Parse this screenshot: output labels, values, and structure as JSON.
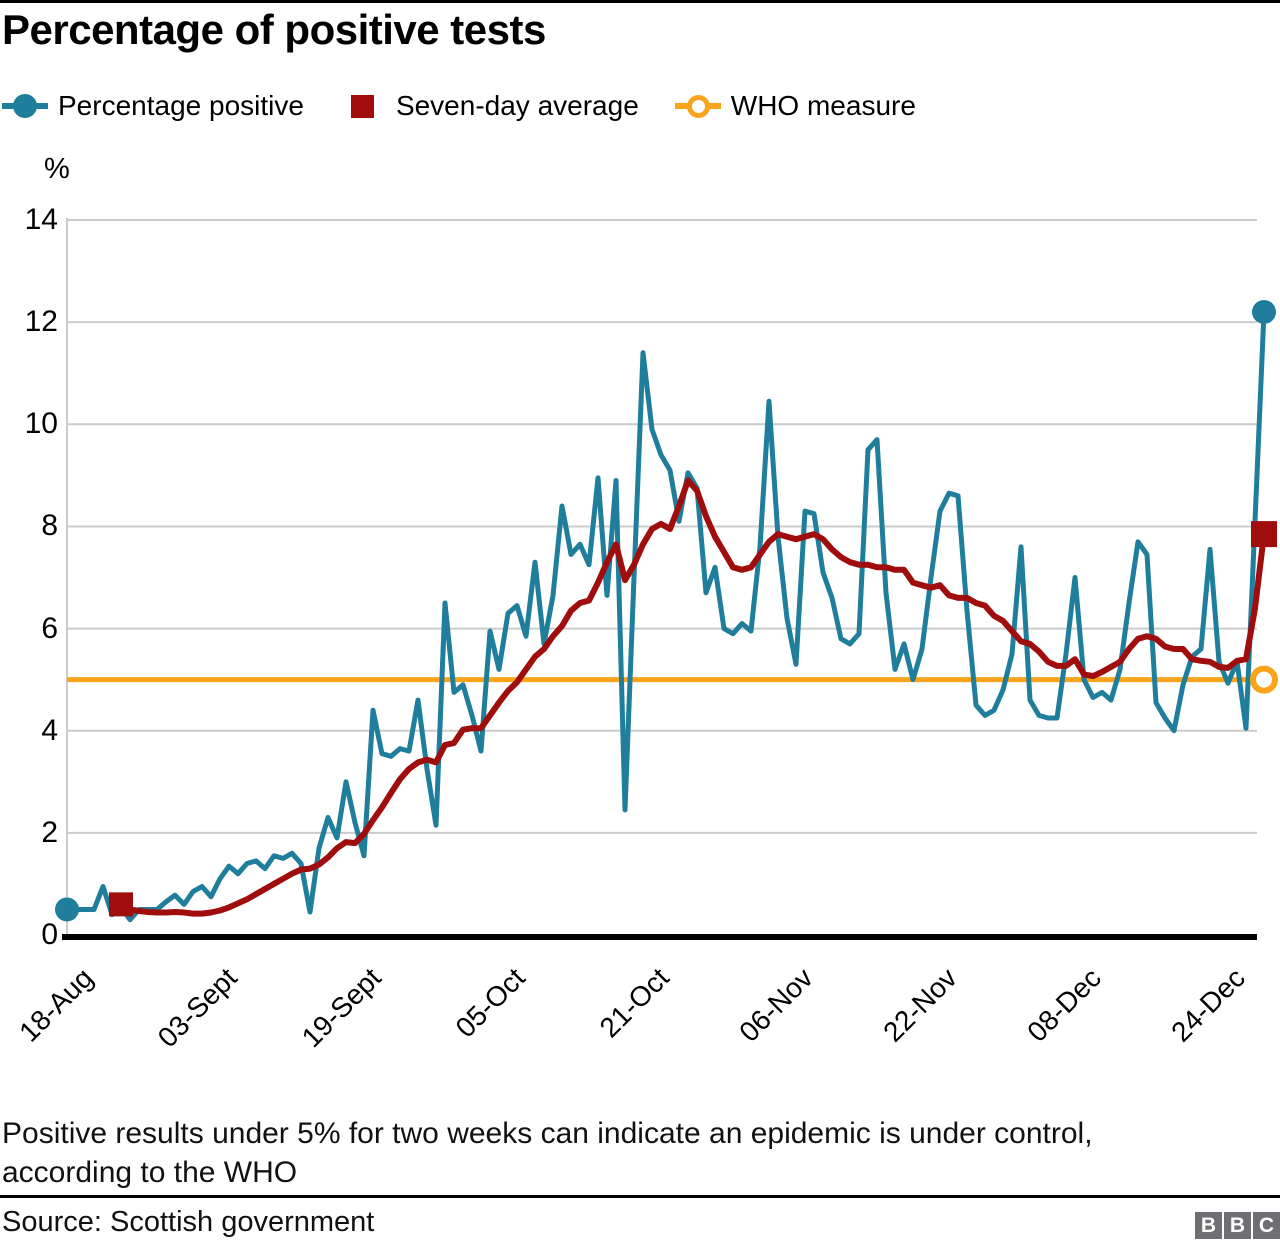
{
  "title": "Percentage of positive tests",
  "legend": {
    "items": [
      {
        "label": "Percentage positive",
        "marker": "filled-circle",
        "color": "#1f7e9c"
      },
      {
        "label": "Seven-day average",
        "marker": "filled-square",
        "color": "#a00d0d"
      },
      {
        "label": "WHO measure",
        "marker": "open-circle",
        "color": "#f9a41b"
      }
    ]
  },
  "footnote": "Positive results under 5% for two weeks can indicate an epidemic is under control, according to the WHO",
  "source": "Source: Scottish government",
  "logo_letters": [
    "B",
    "B",
    "C"
  ],
  "colors": {
    "percentage_positive": "#1f7e9c",
    "seven_day_average": "#a00d0d",
    "who_measure": "#f9a41b",
    "gridline": "#cccccc",
    "axis": "#000000"
  },
  "chart_data": {
    "type": "line",
    "title": "Percentage of positive tests",
    "ylabel": "%",
    "ylim": [
      0,
      14
    ],
    "yticks": [
      0,
      2,
      4,
      6,
      8,
      10,
      12,
      14
    ],
    "grid": "horizontal",
    "legend_position": "top",
    "x_unit": "days since 18-Aug",
    "xtick_day_offsets": [
      0,
      16,
      32,
      48,
      64,
      80,
      96,
      112,
      128
    ],
    "xtick_labels": [
      "18-Aug",
      "03-Sept",
      "19-Sept",
      "05-Oct",
      "21-Oct",
      "06-Nov",
      "22-Nov",
      "08-Dec",
      "24-Dec"
    ],
    "series": [
      {
        "name": "Percentage positive",
        "color": "#1f7e9c",
        "line_width": 5,
        "start_marker": "filled-circle",
        "end_marker": "filled-circle",
        "values": [
          0.5,
          0.5,
          0.5,
          0.5,
          0.95,
          0.4,
          0.55,
          0.3,
          0.5,
          0.5,
          0.5,
          0.65,
          0.78,
          0.6,
          0.85,
          0.95,
          0.75,
          1.1,
          1.35,
          1.2,
          1.4,
          1.45,
          1.3,
          1.55,
          1.5,
          1.6,
          1.4,
          0.45,
          1.7,
          2.3,
          1.9,
          3.0,
          2.2,
          1.55,
          4.4,
          3.55,
          3.5,
          3.65,
          3.6,
          4.6,
          3.25,
          2.15,
          6.5,
          4.75,
          4.9,
          4.3,
          3.6,
          5.95,
          5.2,
          6.3,
          6.45,
          5.85,
          7.3,
          5.7,
          6.65,
          8.4,
          7.45,
          7.65,
          7.25,
          8.95,
          6.65,
          8.9,
          2.45,
          7.0,
          11.4,
          9.9,
          9.4,
          9.1,
          8.1,
          9.05,
          8.75,
          6.7,
          7.2,
          6.0,
          5.9,
          6.1,
          5.95,
          7.6,
          10.45,
          7.8,
          6.2,
          5.3,
          8.3,
          8.25,
          7.1,
          6.6,
          5.8,
          5.7,
          5.9,
          9.5,
          9.7,
          6.7,
          5.2,
          5.7,
          5.0,
          5.6,
          7.0,
          8.3,
          8.65,
          8.6,
          6.35,
          4.5,
          4.3,
          4.4,
          4.8,
          5.5,
          7.6,
          4.6,
          4.3,
          4.25,
          4.25,
          5.5,
          7.0,
          5.0,
          4.65,
          4.75,
          4.6,
          5.2,
          6.5,
          7.7,
          7.45,
          4.55,
          4.25,
          4.0,
          4.9,
          5.45,
          5.6,
          7.55,
          5.35,
          4.93,
          5.36,
          4.05,
          8.1,
          12.2
        ]
      },
      {
        "name": "Seven-day average",
        "color": "#a00d0d",
        "line_width": 6,
        "start_marker": "filled-square",
        "end_marker": "filled-square",
        "values": [
          null,
          null,
          null,
          null,
          null,
          null,
          0.6,
          0.5,
          0.47,
          0.45,
          0.44,
          0.44,
          0.45,
          0.44,
          0.42,
          0.42,
          0.44,
          0.48,
          0.54,
          0.62,
          0.7,
          0.8,
          0.9,
          1.0,
          1.1,
          1.2,
          1.28,
          1.3,
          1.38,
          1.52,
          1.7,
          1.82,
          1.8,
          1.98,
          2.25,
          2.5,
          2.78,
          3.05,
          3.25,
          3.38,
          3.43,
          3.38,
          3.72,
          3.76,
          4.02,
          4.05,
          4.05,
          4.3,
          4.55,
          4.78,
          4.95,
          5.2,
          5.45,
          5.6,
          5.85,
          6.05,
          6.35,
          6.5,
          6.55,
          6.9,
          7.3,
          7.65,
          6.95,
          7.25,
          7.65,
          7.95,
          8.05,
          7.95,
          8.4,
          8.9,
          8.7,
          8.2,
          7.8,
          7.5,
          7.2,
          7.15,
          7.2,
          7.45,
          7.7,
          7.85,
          7.8,
          7.75,
          7.8,
          7.85,
          7.75,
          7.55,
          7.4,
          7.3,
          7.25,
          7.25,
          7.2,
          7.2,
          7.15,
          7.15,
          6.9,
          6.85,
          6.8,
          6.85,
          6.65,
          6.6,
          6.6,
          6.5,
          6.45,
          6.25,
          6.15,
          5.95,
          5.75,
          5.7,
          5.55,
          5.35,
          5.27,
          5.27,
          5.4,
          5.1,
          5.07,
          5.15,
          5.25,
          5.35,
          5.6,
          5.8,
          5.85,
          5.8,
          5.65,
          5.6,
          5.6,
          5.4,
          5.37,
          5.35,
          5.25,
          5.23,
          5.37,
          5.4,
          6.4,
          7.85
        ]
      },
      {
        "name": "WHO measure",
        "color": "#f9a41b",
        "line_width": 5,
        "end_marker": "open-circle",
        "constant_value": 5
      }
    ]
  }
}
